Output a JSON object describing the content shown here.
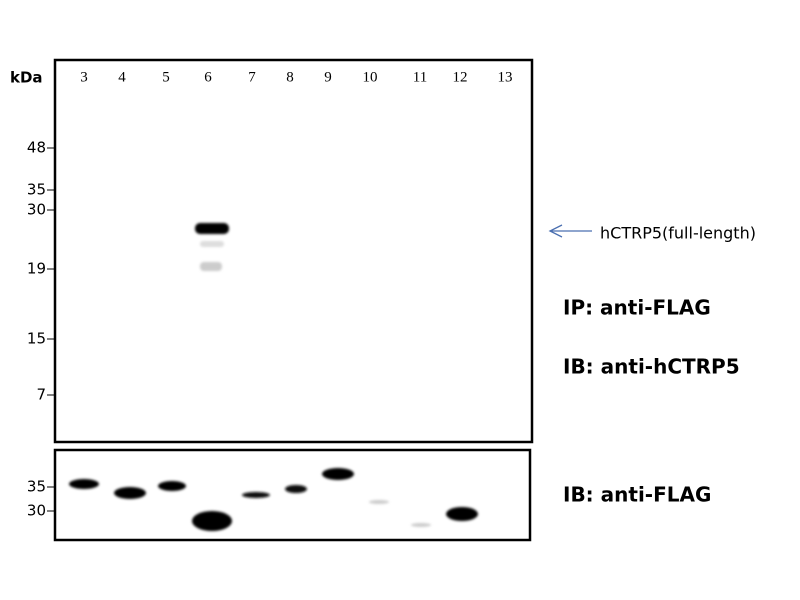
{
  "top_panel": {
    "unit_label": "kDa",
    "lanes": [
      "3",
      "4",
      "5",
      "6",
      "7",
      "8",
      "9",
      "10",
      "11",
      "12",
      "13"
    ],
    "markers": [
      "48",
      "35",
      "30",
      "19",
      "15",
      "7"
    ]
  },
  "bottom_panel": {
    "markers": [
      "35",
      "30"
    ]
  },
  "annotations": {
    "arrow_label": "hCTRP5(full-length)",
    "ip": "IP: anti-FLAG",
    "ib_top": "IB: anti-hCTRP5",
    "ib_bottom": "IB: anti-FLAG"
  }
}
